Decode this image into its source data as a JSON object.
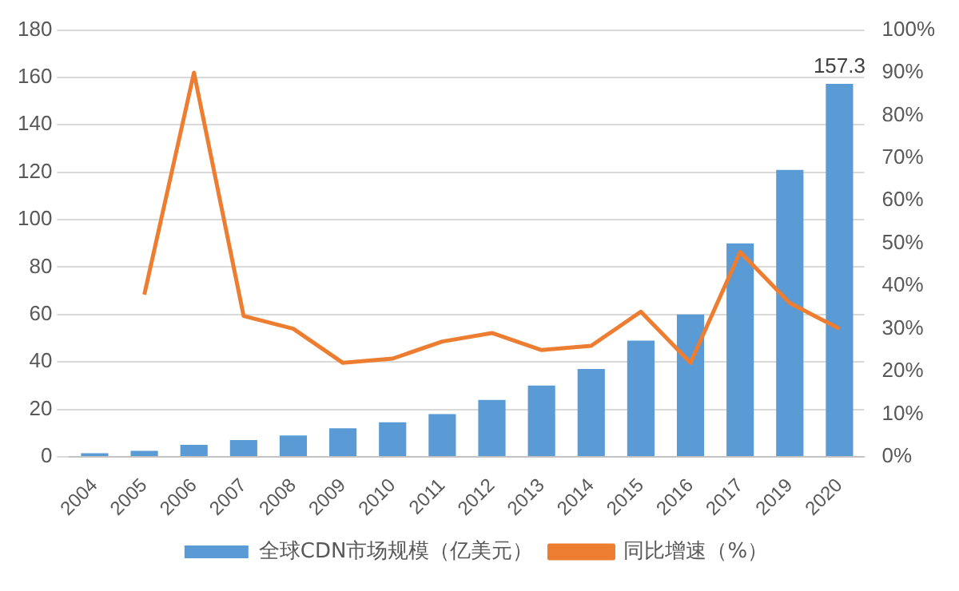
{
  "chart_data": {
    "type": "bar",
    "categories": [
      "2004",
      "2005",
      "2006",
      "2007",
      "2008",
      "2009",
      "2010",
      "2011",
      "2012",
      "2013",
      "2014",
      "2015",
      "2016",
      "2017",
      "2019",
      "2020"
    ],
    "series": [
      {
        "name": "全球CDN市场规模（亿美元）",
        "color": "#5b9bd5",
        "values": [
          1.5,
          2.5,
          5,
          7,
          9,
          12,
          14.5,
          18,
          24,
          30,
          37,
          49,
          60,
          90,
          121,
          157.3
        ],
        "value_labels": [
          null,
          null,
          null,
          null,
          null,
          null,
          null,
          null,
          null,
          null,
          null,
          null,
          null,
          null,
          null,
          "157.3"
        ]
      },
      {
        "name": "同比增速（%）",
        "type": "line",
        "axis": "y2",
        "color": "#ed7d31",
        "values": [
          null,
          38,
          90,
          33,
          30,
          22,
          23,
          27,
          29,
          25,
          26,
          34,
          22,
          48,
          36,
          30
        ]
      }
    ],
    "ylim": [
      0,
      180
    ],
    "yticks": [
      0,
      20,
      40,
      60,
      80,
      100,
      120,
      140,
      160,
      180
    ],
    "y2lim": [
      0,
      100
    ],
    "y2ticks": [
      {
        "value": 0,
        "label": "0%"
      },
      {
        "value": 10,
        "label": "10%"
      },
      {
        "value": 20,
        "label": "20%"
      },
      {
        "value": 30,
        "label": "30%"
      },
      {
        "value": 40,
        "label": "40%"
      },
      {
        "value": 50,
        "label": "50%"
      },
      {
        "value": 60,
        "label": "60%"
      },
      {
        "value": 70,
        "label": "70%"
      },
      {
        "value": 80,
        "label": "80%"
      },
      {
        "value": 90,
        "label": "90%"
      },
      {
        "value": 100,
        "label": "100%"
      }
    ],
    "grid": "y",
    "legend": "bottom",
    "marker": "none"
  }
}
